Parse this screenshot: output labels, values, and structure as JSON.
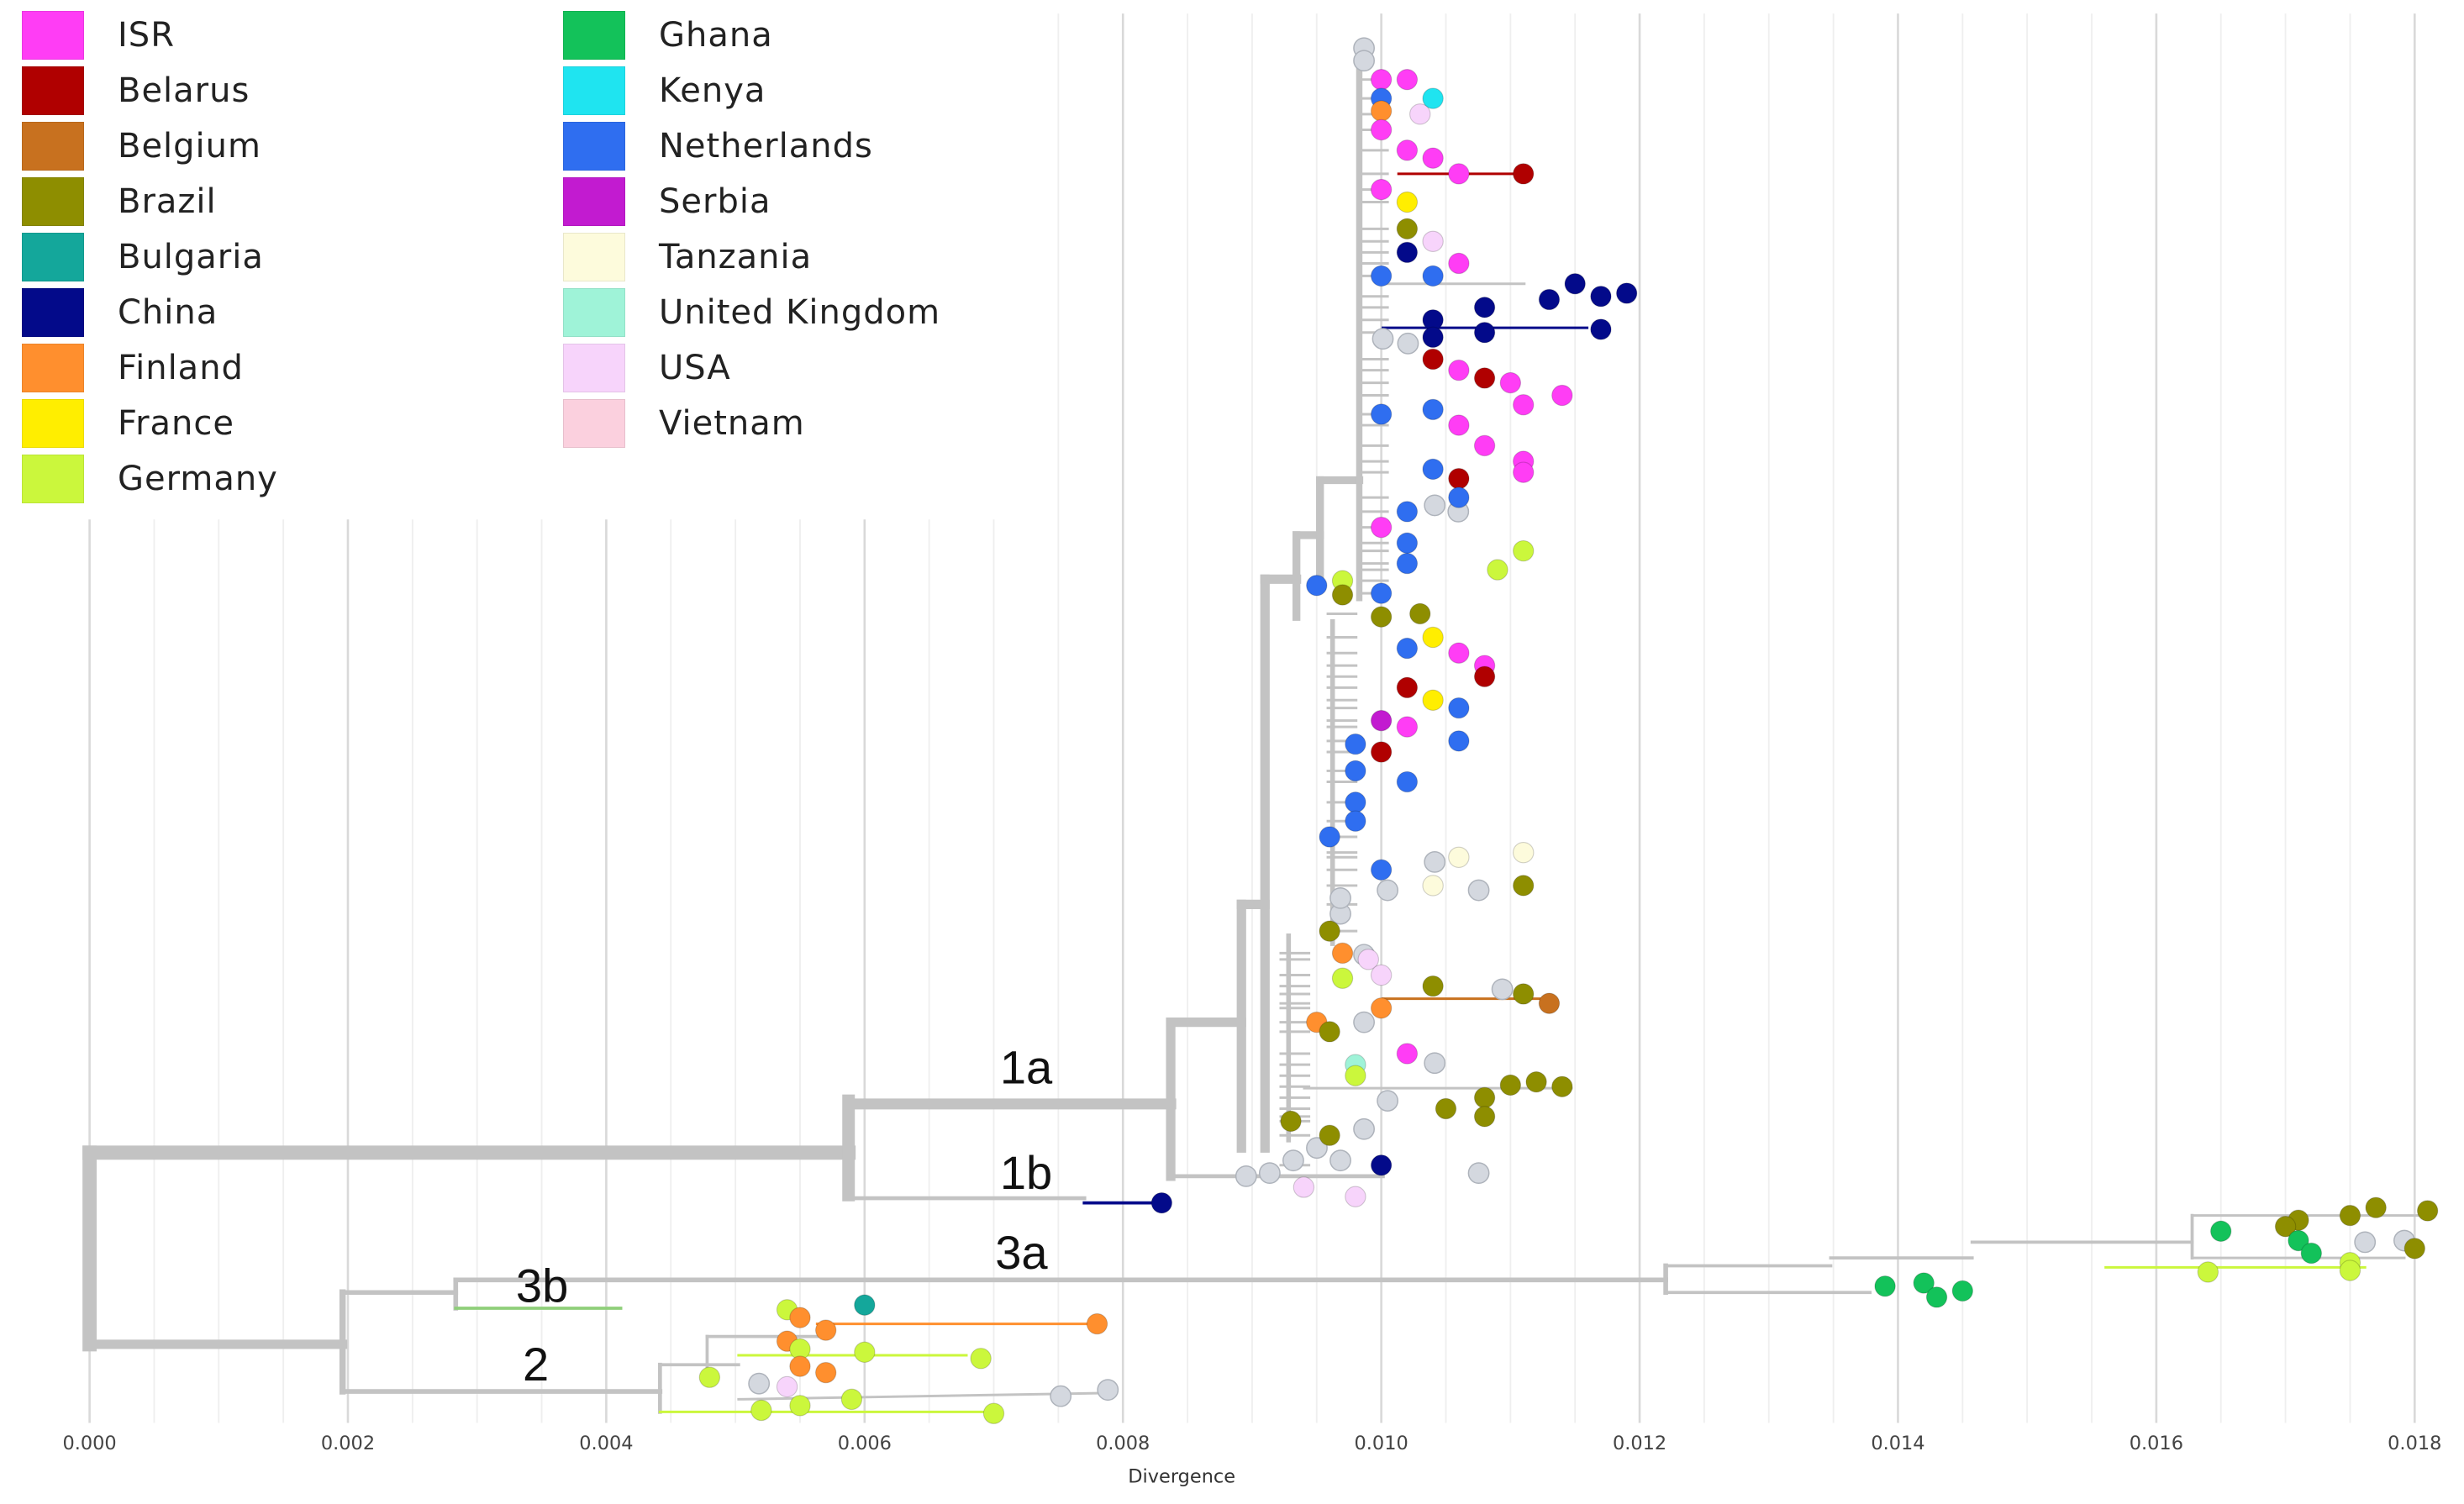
{
  "chart_data": {
    "type": "scatter",
    "subtype": "phylogenetic-tree",
    "xlabel": "Divergence",
    "xlim": [
      0.0,
      0.018
    ],
    "xticks": [
      "0.000",
      "0.002",
      "0.004",
      "0.006",
      "0.008",
      "0.010",
      "0.012",
      "0.014",
      "0.016",
      "0.018"
    ],
    "grid": true,
    "legend_placement": "top-left",
    "legend": [
      {
        "name": "ISR",
        "color": "#ff3df5"
      },
      {
        "name": "Belarus",
        "color": "#b00000"
      },
      {
        "name": "Belgium",
        "color": "#c8711f"
      },
      {
        "name": "Brazil",
        "color": "#8e8e00"
      },
      {
        "name": "Bulgaria",
        "color": "#14a79b"
      },
      {
        "name": "China",
        "color": "#030a8a"
      },
      {
        "name": "Finland",
        "color": "#ff8f2e"
      },
      {
        "name": "France",
        "color": "#ffee00"
      },
      {
        "name": "Germany",
        "color": "#cbf73c"
      },
      {
        "name": "Ghana",
        "color": "#13c25a"
      },
      {
        "name": "Kenya",
        "color": "#1fe4f0"
      },
      {
        "name": "Netherlands",
        "color": "#2f6ef0"
      },
      {
        "name": "Serbia",
        "color": "#c21bd0"
      },
      {
        "name": "Tanzania",
        "color": "#fdfbdc"
      },
      {
        "name": "United Kingdom",
        "color": "#9ff3d8"
      },
      {
        "name": "USA",
        "color": "#f7d4fb"
      },
      {
        "name": "Vietnam",
        "color": "#fbd0de"
      }
    ],
    "clade_labels": [
      {
        "name": "1a",
        "x": 0.0072,
        "y": 679
      },
      {
        "name": "1b",
        "x": 0.0072,
        "y": 746
      },
      {
        "name": "3a",
        "x": 0.0072,
        "y": 797
      },
      {
        "name": "3b",
        "x": 0.0035,
        "y": 818
      },
      {
        "name": "2",
        "x": 0.0034,
        "y": 868
      }
    ],
    "tips": [
      {
        "country": "ISR",
        "x": 0.01,
        "y": 50
      },
      {
        "country": "ISR",
        "x": 0.0102,
        "y": 50
      },
      {
        "country": "Netherlands",
        "x": 0.01,
        "y": 62
      },
      {
        "country": "Kenya",
        "x": 0.0104,
        "y": 62
      },
      {
        "country": "Finland",
        "x": 0.01,
        "y": 70
      },
      {
        "country": "USA",
        "x": 0.0103,
        "y": 72
      },
      {
        "country": "ISR",
        "x": 0.01,
        "y": 82
      },
      {
        "country": "ISR",
        "x": 0.0102,
        "y": 95
      },
      {
        "country": "ISR",
        "x": 0.0104,
        "y": 100
      },
      {
        "country": "ISR",
        "x": 0.0106,
        "y": 110
      },
      {
        "country": "Belarus",
        "x": 0.0111,
        "y": 110
      },
      {
        "country": "ISR",
        "x": 0.01,
        "y": 120
      },
      {
        "country": "France",
        "x": 0.0102,
        "y": 128
      },
      {
        "country": "Brazil",
        "x": 0.0102,
        "y": 145
      },
      {
        "country": "USA",
        "x": 0.0104,
        "y": 153
      },
      {
        "country": "China",
        "x": 0.0102,
        "y": 160
      },
      {
        "country": "ISR",
        "x": 0.0106,
        "y": 167
      },
      {
        "country": "Netherlands",
        "x": 0.01,
        "y": 175
      },
      {
        "country": "Netherlands",
        "x": 0.0104,
        "y": 175
      },
      {
        "country": "China",
        "x": 0.0115,
        "y": 180
      },
      {
        "country": "China",
        "x": 0.0119,
        "y": 186
      },
      {
        "country": "China",
        "x": 0.0117,
        "y": 188
      },
      {
        "country": "China",
        "x": 0.0113,
        "y": 190
      },
      {
        "country": "China",
        "x": 0.0108,
        "y": 195
      },
      {
        "country": "China",
        "x": 0.0104,
        "y": 203
      },
      {
        "country": "China",
        "x": 0.0117,
        "y": 209
      },
      {
        "country": "China",
        "x": 0.0108,
        "y": 211
      },
      {
        "country": "China",
        "x": 0.0104,
        "y": 214
      },
      {
        "country": "Belarus",
        "x": 0.0104,
        "y": 228
      },
      {
        "country": "ISR",
        "x": 0.0106,
        "y": 235
      },
      {
        "country": "Belarus",
        "x": 0.0108,
        "y": 240
      },
      {
        "country": "ISR",
        "x": 0.011,
        "y": 243
      },
      {
        "country": "ISR",
        "x": 0.0114,
        "y": 251
      },
      {
        "country": "ISR",
        "x": 0.0111,
        "y": 257
      },
      {
        "country": "Netherlands",
        "x": 0.01,
        "y": 263
      },
      {
        "country": "Netherlands",
        "x": 0.0104,
        "y": 260
      },
      {
        "country": "ISR",
        "x": 0.0106,
        "y": 270
      },
      {
        "country": "ISR",
        "x": 0.0108,
        "y": 283
      },
      {
        "country": "ISR",
        "x": 0.0111,
        "y": 293
      },
      {
        "country": "ISR",
        "x": 0.0111,
        "y": 300
      },
      {
        "country": "Netherlands",
        "x": 0.0104,
        "y": 298
      },
      {
        "country": "Belarus",
        "x": 0.0106,
        "y": 304
      },
      {
        "country": "Netherlands",
        "x": 0.0106,
        "y": 316
      },
      {
        "country": "Netherlands",
        "x": 0.0102,
        "y": 325
      },
      {
        "country": "ISR",
        "x": 0.01,
        "y": 335
      },
      {
        "country": "Netherlands",
        "x": 0.0102,
        "y": 345
      },
      {
        "country": "Germany",
        "x": 0.0111,
        "y": 350
      },
      {
        "country": "Netherlands",
        "x": 0.0102,
        "y": 358
      },
      {
        "country": "Germany",
        "x": 0.0109,
        "y": 362
      },
      {
        "country": "Netherlands",
        "x": 0.0095,
        "y": 372
      },
      {
        "country": "Germany",
        "x": 0.0097,
        "y": 369
      },
      {
        "country": "Brazil",
        "x": 0.0097,
        "y": 378
      },
      {
        "country": "Netherlands",
        "x": 0.01,
        "y": 377
      },
      {
        "country": "Brazil",
        "x": 0.0103,
        "y": 390
      },
      {
        "country": "Brazil",
        "x": 0.01,
        "y": 392
      },
      {
        "country": "France",
        "x": 0.0104,
        "y": 405
      },
      {
        "country": "Netherlands",
        "x": 0.0102,
        "y": 412
      },
      {
        "country": "ISR",
        "x": 0.0106,
        "y": 415
      },
      {
        "country": "ISR",
        "x": 0.0108,
        "y": 423
      },
      {
        "country": "Belarus",
        "x": 0.0108,
        "y": 430
      },
      {
        "country": "Belarus",
        "x": 0.0102,
        "y": 437
      },
      {
        "country": "France",
        "x": 0.0104,
        "y": 445
      },
      {
        "country": "Netherlands",
        "x": 0.0106,
        "y": 450
      },
      {
        "country": "Serbia",
        "x": 0.01,
        "y": 458
      },
      {
        "country": "ISR",
        "x": 0.0102,
        "y": 462
      },
      {
        "country": "Netherlands",
        "x": 0.0106,
        "y": 471
      },
      {
        "country": "Netherlands",
        "x": 0.0098,
        "y": 473
      },
      {
        "country": "Belarus",
        "x": 0.01,
        "y": 478
      },
      {
        "country": "Netherlands",
        "x": 0.0098,
        "y": 490
      },
      {
        "country": "Netherlands",
        "x": 0.0102,
        "y": 497
      },
      {
        "country": "Netherlands",
        "x": 0.0098,
        "y": 510
      },
      {
        "country": "Netherlands",
        "x": 0.0098,
        "y": 522
      },
      {
        "country": "Netherlands",
        "x": 0.0096,
        "y": 532
      },
      {
        "country": "Tanzania",
        "x": 0.0111,
        "y": 542
      },
      {
        "country": "Tanzania",
        "x": 0.0106,
        "y": 545
      },
      {
        "country": "Netherlands",
        "x": 0.01,
        "y": 553
      },
      {
        "country": "Brazil",
        "x": 0.0111,
        "y": 563
      },
      {
        "country": "Tanzania",
        "x": 0.0104,
        "y": 563
      },
      {
        "country": "Brazil",
        "x": 0.0096,
        "y": 592
      },
      {
        "country": "Finland",
        "x": 0.0097,
        "y": 606
      },
      {
        "country": "USA",
        "x": 0.0099,
        "y": 610
      },
      {
        "country": "USA",
        "x": 0.01,
        "y": 620
      },
      {
        "country": "Germany",
        "x": 0.0097,
        "y": 622
      },
      {
        "country": "Brazil",
        "x": 0.0104,
        "y": 627
      },
      {
        "country": "Brazil",
        "x": 0.0111,
        "y": 632
      },
      {
        "country": "Belgium",
        "x": 0.0113,
        "y": 638
      },
      {
        "country": "Finland",
        "x": 0.01,
        "y": 641
      },
      {
        "country": "Finland",
        "x": 0.0095,
        "y": 650
      },
      {
        "country": "Brazil",
        "x": 0.0096,
        "y": 656
      },
      {
        "country": "ISR",
        "x": 0.0102,
        "y": 670
      },
      {
        "country": "United Kingdom",
        "x": 0.0098,
        "y": 677
      },
      {
        "country": "Germany",
        "x": 0.0098,
        "y": 684
      },
      {
        "country": "Brazil",
        "x": 0.0114,
        "y": 691
      },
      {
        "country": "Brazil",
        "x": 0.0112,
        "y": 688
      },
      {
        "country": "Brazil",
        "x": 0.011,
        "y": 690
      },
      {
        "country": "Brazil",
        "x": 0.0108,
        "y": 698
      },
      {
        "country": "Brazil",
        "x": 0.0105,
        "y": 705
      },
      {
        "country": "Brazil",
        "x": 0.0108,
        "y": 710
      },
      {
        "country": "Brazil",
        "x": 0.0093,
        "y": 713
      },
      {
        "country": "Brazil",
        "x": 0.0096,
        "y": 722
      },
      {
        "country": "China",
        "x": 0.01,
        "y": 741
      },
      {
        "country": "USA",
        "x": 0.0094,
        "y": 755
      },
      {
        "country": "USA",
        "x": 0.0098,
        "y": 761
      },
      {
        "country": "China",
        "x": 0.0083,
        "y": 765
      },
      {
        "country": "Brazil",
        "x": 0.0181,
        "y": 770
      },
      {
        "country": "Brazil",
        "x": 0.0177,
        "y": 768
      },
      {
        "country": "Brazil",
        "x": 0.0175,
        "y": 773
      },
      {
        "country": "Brazil",
        "x": 0.0171,
        "y": 776
      },
      {
        "country": "Brazil",
        "x": 0.017,
        "y": 780
      },
      {
        "country": "Ghana",
        "x": 0.0165,
        "y": 783
      },
      {
        "country": "Ghana",
        "x": 0.0171,
        "y": 789
      },
      {
        "country": "Brazil",
        "x": 0.018,
        "y": 794
      },
      {
        "country": "Ghana",
        "x": 0.0172,
        "y": 797
      },
      {
        "country": "Germany",
        "x": 0.0175,
        "y": 803
      },
      {
        "country": "Germany",
        "x": 0.0175,
        "y": 808
      },
      {
        "country": "Germany",
        "x": 0.0164,
        "y": 809
      },
      {
        "country": "Ghana",
        "x": 0.0139,
        "y": 818
      },
      {
        "country": "Ghana",
        "x": 0.0142,
        "y": 816
      },
      {
        "country": "Ghana",
        "x": 0.0145,
        "y": 821
      },
      {
        "country": "Ghana",
        "x": 0.0143,
        "y": 825
      },
      {
        "country": "Bulgaria",
        "x": 0.006,
        "y": 830
      },
      {
        "country": "Germany",
        "x": 0.0054,
        "y": 833
      },
      {
        "country": "Finland",
        "x": 0.0055,
        "y": 838
      },
      {
        "country": "Finland",
        "x": 0.0078,
        "y": 842
      },
      {
        "country": "Finland",
        "x": 0.0057,
        "y": 846
      },
      {
        "country": "Finland",
        "x": 0.0054,
        "y": 853
      },
      {
        "country": "Germany",
        "x": 0.0055,
        "y": 858
      },
      {
        "country": "Germany",
        "x": 0.006,
        "y": 860
      },
      {
        "country": "Germany",
        "x": 0.0069,
        "y": 864
      },
      {
        "country": "Finland",
        "x": 0.0055,
        "y": 869
      },
      {
        "country": "Finland",
        "x": 0.0057,
        "y": 873
      },
      {
        "country": "Germany",
        "x": 0.0048,
        "y": 876
      },
      {
        "country": "USA",
        "x": 0.0054,
        "y": 882
      },
      {
        "country": "Germany",
        "x": 0.0059,
        "y": 890
      },
      {
        "country": "Germany",
        "x": 0.0055,
        "y": 894
      },
      {
        "country": "Germany",
        "x": 0.0052,
        "y": 897
      },
      {
        "country": "Germany",
        "x": 0.007,
        "y": 899
      }
    ]
  }
}
